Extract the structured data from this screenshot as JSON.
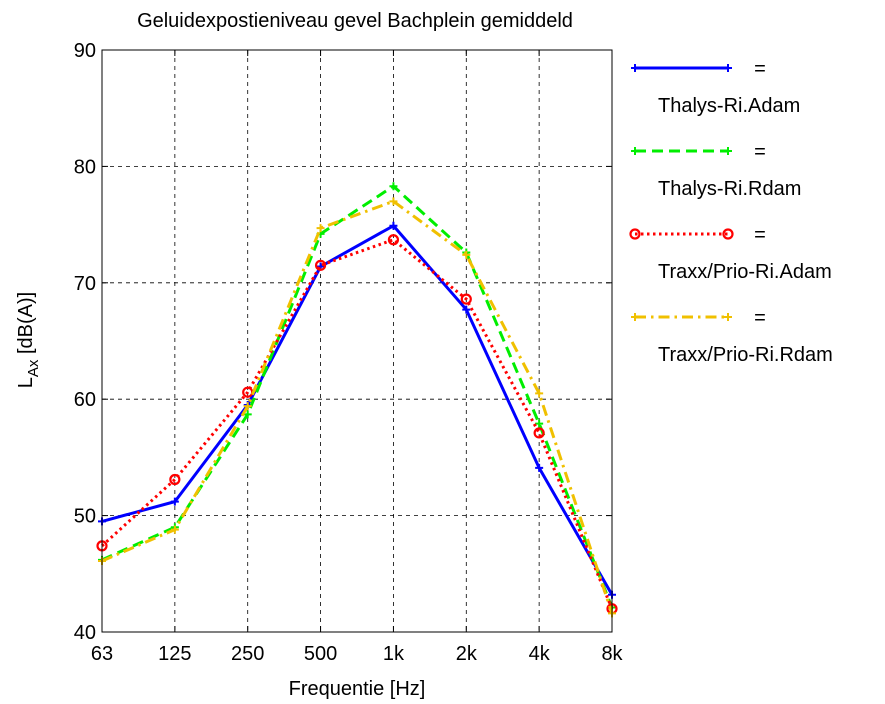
{
  "chart_data": {
    "type": "line",
    "title": "Geluidexpostieniveau gevel Bachplein gemiddeld",
    "xlabel": "Frequentie [Hz]",
    "ylabel": {
      "base": "L",
      "sub": "Ax",
      "unit": " [dB(A)]"
    },
    "categories": [
      "63",
      "125",
      "250",
      "500",
      "1k",
      "2k",
      "4k",
      "8k"
    ],
    "ylim": [
      40,
      90
    ],
    "yticks": [
      "40",
      "50",
      "60",
      "70",
      "80",
      "90"
    ],
    "grid": true,
    "legend_position": "right, outside plot",
    "legend_eq": "=",
    "series": [
      {
        "name": "Thalys-Ri.Adam",
        "color": "#0000ff",
        "dash": "solid",
        "marker": "plus",
        "values": [
          49.5,
          51.2,
          59.5,
          71.4,
          74.9,
          67.7,
          54.1,
          43.2
        ]
      },
      {
        "name": "Thalys-Ri.Rdam",
        "color": "#00ee00",
        "dash": "dashed",
        "marker": "plus",
        "values": [
          46.2,
          49.0,
          58.7,
          74.2,
          78.3,
          72.6,
          57.9,
          42.1
        ]
      },
      {
        "name": "Traxx/Prio-Ri.Adam",
        "color": "#ff0000",
        "dash": "dotted",
        "marker": "circle",
        "values": [
          47.4,
          53.1,
          60.6,
          71.5,
          73.7,
          68.6,
          57.1,
          42.0
        ]
      },
      {
        "name": "Traxx/Prio-Ri.Rdam",
        "color": "#f0c000",
        "dash": "dashdot",
        "marker": "plus",
        "values": [
          46.1,
          48.8,
          59.4,
          74.7,
          77.0,
          72.4,
          60.5,
          41.6
        ]
      }
    ]
  }
}
